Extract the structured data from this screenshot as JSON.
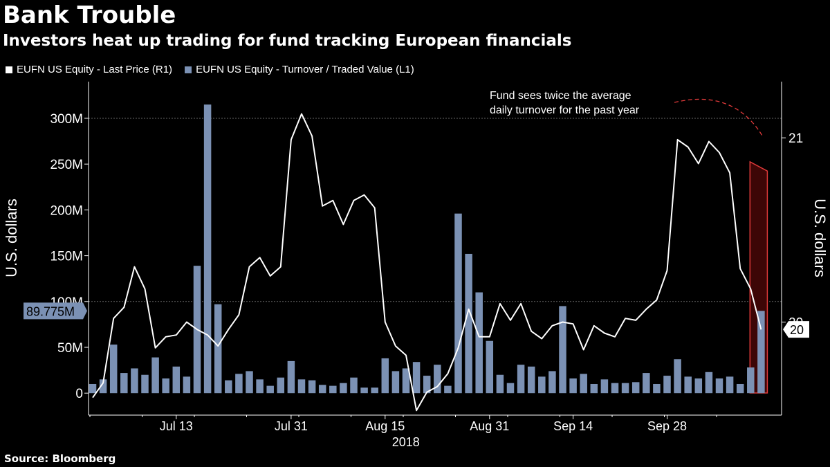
{
  "title": "Bank Trouble",
  "subtitle": "Investors heat up trading for fund tracking European financials",
  "source": "Source: Bloomberg",
  "colors": {
    "bar": "#7b91b4",
    "line": "#ffffff",
    "highlight": "#e03a3a",
    "annotation": "#e03a3a"
  },
  "chart_data": {
    "type": "bar",
    "legend": [
      {
        "label": "EUFN US Equity - Last Price (R1)",
        "color": "#ffffff"
      },
      {
        "label": "EUFN US Equity - Turnover / Traded Value (L1)",
        "color": "#7b91b4"
      }
    ],
    "left_axis": {
      "label": "U.S. dollars",
      "ticks": [
        "0",
        "50M",
        "100M",
        "150M",
        "200M",
        "250M",
        "300M"
      ],
      "tick_values": [
        0,
        50,
        100,
        150,
        200,
        250,
        300
      ],
      "range": [
        -24,
        340
      ],
      "unit": "millions USD"
    },
    "right_axis": {
      "label": "U.S. dollars",
      "ticks": [
        "20",
        "21"
      ],
      "tick_values": [
        20,
        21
      ],
      "range": [
        19.495,
        21.305
      ]
    },
    "x_ticks": [
      "Jul 13",
      "Jul 31",
      "Aug 15",
      "Aug 31",
      "Sep 14",
      "Sep 28"
    ],
    "x_tick_index": [
      8,
      19,
      28,
      38,
      46,
      55
    ],
    "x_year": "2018",
    "grid_h_values": [
      100,
      300
    ],
    "turnover_millions": [
      10,
      15,
      53,
      22,
      27,
      20,
      39,
      16,
      29,
      18,
      139,
      315,
      97,
      14,
      21,
      24,
      15,
      8,
      17,
      35,
      15,
      14,
      9,
      8,
      11,
      17,
      6,
      6,
      38,
      24,
      27,
      34,
      19,
      31,
      8,
      196,
      152,
      110,
      57,
      20,
      11,
      31,
      29,
      18,
      24,
      95,
      16,
      21,
      10,
      15,
      11,
      11,
      12,
      22,
      10,
      19,
      37,
      18,
      16,
      23,
      16,
      18,
      10,
      28,
      89.775
    ],
    "last_price": [
      19.59,
      19.67,
      20.02,
      20.08,
      20.3,
      20.18,
      19.86,
      19.92,
      19.93,
      20.0,
      19.96,
      19.93,
      19.87,
      19.96,
      20.04,
      20.3,
      20.35,
      20.25,
      20.3,
      20.99,
      21.13,
      21.01,
      20.63,
      20.66,
      20.53,
      20.66,
      20.69,
      20.62,
      20.0,
      19.87,
      19.82,
      19.52,
      19.62,
      19.65,
      19.72,
      19.86,
      20.07,
      19.92,
      19.92,
      20.1,
      20.01,
      20.1,
      19.95,
      19.91,
      19.98,
      20.0,
      19.99,
      19.85,
      19.98,
      19.94,
      19.92,
      20.02,
      20.01,
      20.07,
      20.12,
      20.28,
      20.99,
      20.95,
      20.86,
      20.98,
      20.92,
      20.81,
      20.29,
      20.18,
      19.96
    ],
    "last_price_label": "20",
    "last_turnover_label": "89.775M",
    "annotation": "Fund sees twice the average daily turnover for the past year",
    "annotation_lines": [
      "Fund sees twice the average",
      "daily turnover for the past year"
    ],
    "highlight_last_index": 64
  }
}
